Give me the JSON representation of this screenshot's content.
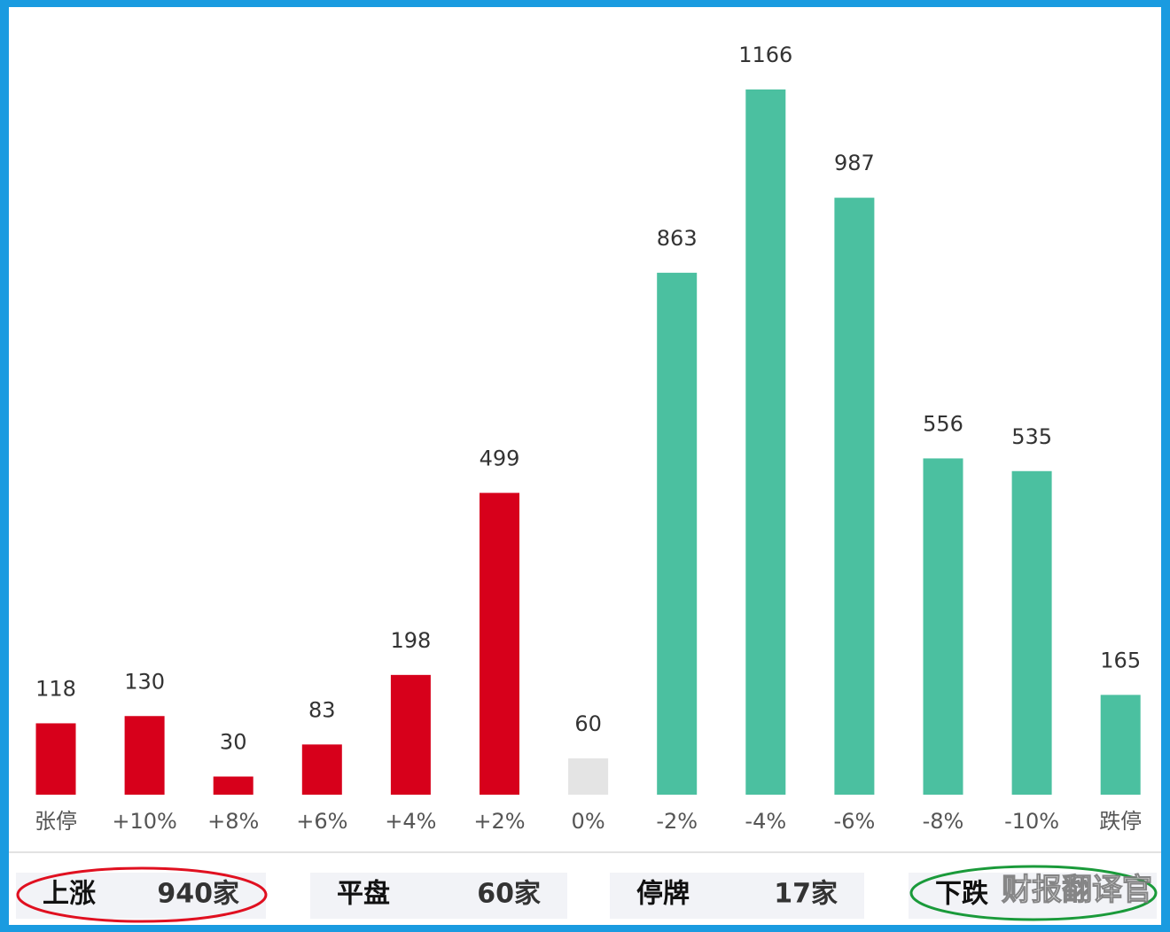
{
  "chart_data": {
    "type": "bar",
    "categories": [
      "张停",
      "+10%",
      "+8%",
      "+6%",
      "+4%",
      "+2%",
      "0%",
      "-2%",
      "-4%",
      "-6%",
      "-8%",
      "-10%",
      "跌停"
    ],
    "values": [
      118,
      130,
      30,
      83,
      198,
      499,
      60,
      863,
      1166,
      987,
      556,
      535,
      165
    ],
    "colors": [
      "#d7001b",
      "#d7001b",
      "#d7001b",
      "#d7001b",
      "#d7001b",
      "#d7001b",
      "#e4e4e4",
      "#4bc0a0",
      "#4bc0a0",
      "#4bc0a0",
      "#4bc0a0",
      "#4bc0a0",
      "#4bc0a0"
    ]
  },
  "summary": {
    "items": [
      {
        "label": "上涨",
        "value": "940家"
      },
      {
        "label": "平盘",
        "value": "60家"
      },
      {
        "label": "停牌",
        "value": "17家"
      },
      {
        "label": "下跌"
      }
    ],
    "watermark": "财报翻译官"
  }
}
